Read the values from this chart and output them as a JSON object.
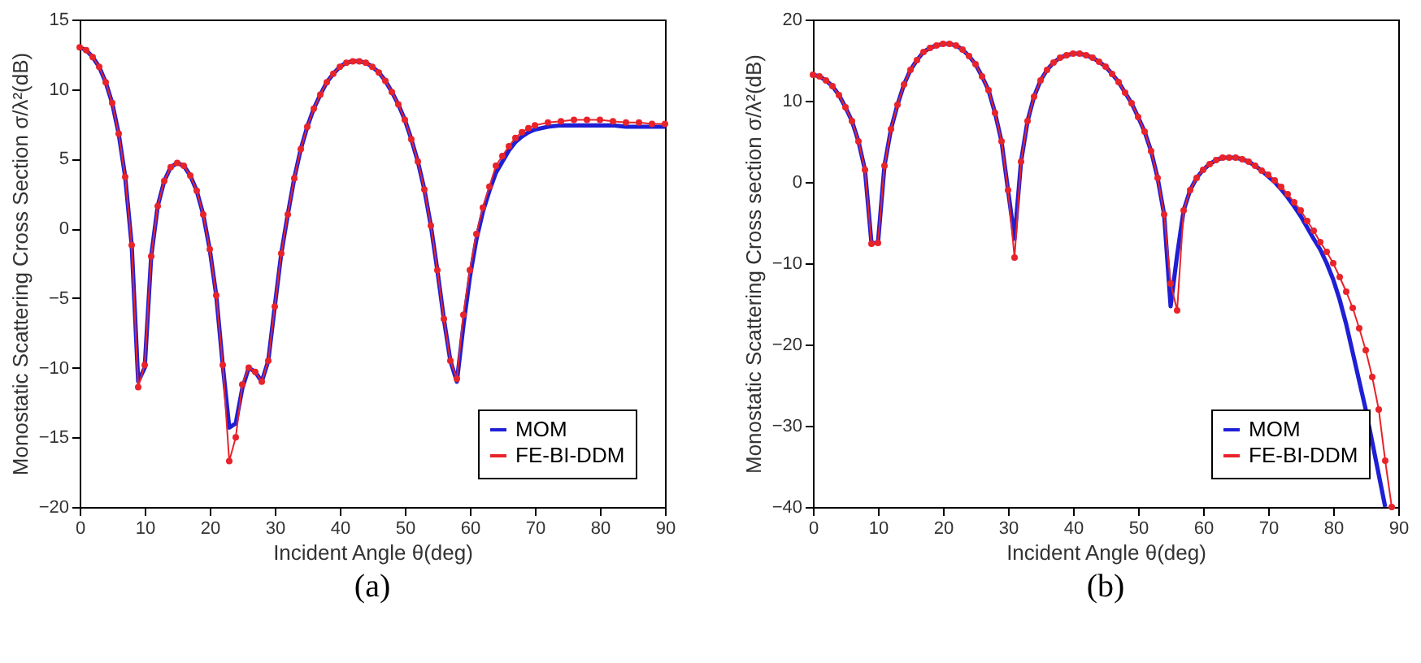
{
  "chart_data": [
    {
      "type": "line",
      "title": "(a)",
      "xlabel": "Incident Angle θ(deg)",
      "ylabel": "Monostatic Scattering Cross Section σ/λ²(dB)",
      "xlim": [
        0,
        90
      ],
      "xticks": [
        0,
        10,
        20,
        30,
        40,
        50,
        60,
        70,
        80,
        90
      ],
      "ylim": [
        -20,
        15
      ],
      "yticks": [
        -20,
        -15,
        -10,
        -5,
        0,
        5,
        10,
        15
      ],
      "grid": false,
      "legend": "bottom right",
      "series": [
        {
          "name": "MOM",
          "color": "#1f1fd6",
          "marker": "none",
          "x": [
            0,
            1,
            2,
            3,
            4,
            5,
            6,
            7,
            8,
            9,
            10,
            11,
            12,
            13,
            14,
            15,
            16,
            17,
            18,
            19,
            20,
            21,
            22,
            23,
            24,
            25,
            26,
            27,
            28,
            29,
            30,
            31,
            32,
            33,
            34,
            35,
            36,
            37,
            38,
            39,
            40,
            41,
            42,
            43,
            44,
            45,
            46,
            47,
            48,
            49,
            50,
            51,
            52,
            53,
            54,
            55,
            56,
            57,
            58,
            59,
            60,
            61,
            62,
            63,
            64,
            65,
            66,
            67,
            68,
            69,
            70,
            72,
            74,
            76,
            78,
            80,
            82,
            84,
            86,
            88,
            90
          ],
          "values": [
            13,
            12.8,
            12.3,
            11.6,
            10.5,
            9,
            6.8,
            3.7,
            -1.2,
            -11,
            -10,
            -2,
            1.6,
            3.4,
            4.4,
            4.7,
            4.5,
            3.8,
            2.7,
            1,
            -1.5,
            -4.8,
            -9.8,
            -14.3,
            -14,
            -11.5,
            -10,
            -10.3,
            -11,
            -9.5,
            -5.6,
            -1.8,
            1,
            3.6,
            5.7,
            7.3,
            8.6,
            9.6,
            10.5,
            11.1,
            11.6,
            11.9,
            12,
            12,
            11.9,
            11.6,
            11.2,
            10.6,
            9.8,
            8.9,
            7.8,
            6.4,
            4.8,
            2.8,
            0.2,
            -3,
            -6.5,
            -9.5,
            -11,
            -7,
            -3.5,
            -0.8,
            1.2,
            2.7,
            4,
            4.8,
            5.6,
            6.2,
            6.6,
            6.9,
            7.1,
            7.3,
            7.4,
            7.4,
            7.4,
            7.4,
            7.4,
            7.3,
            7.3,
            7.3,
            7.3
          ]
        },
        {
          "name": "FE-BI-DDM",
          "color": "#e8232a",
          "marker": "circle",
          "x": [
            0,
            1,
            2,
            3,
            4,
            5,
            6,
            7,
            8,
            9,
            10,
            11,
            12,
            13,
            14,
            15,
            16,
            17,
            18,
            19,
            20,
            21,
            22,
            23,
            24,
            25,
            26,
            27,
            28,
            29,
            30,
            31,
            32,
            33,
            34,
            35,
            36,
            37,
            38,
            39,
            40,
            41,
            42,
            43,
            44,
            45,
            46,
            47,
            48,
            49,
            50,
            51,
            52,
            53,
            54,
            55,
            56,
            57,
            58,
            59,
            60,
            61,
            62,
            63,
            64,
            65,
            66,
            67,
            68,
            69,
            70,
            72,
            74,
            76,
            78,
            80,
            82,
            84,
            86,
            88,
            90
          ],
          "values": [
            13,
            12.8,
            12.3,
            11.6,
            10.5,
            9,
            6.8,
            3.7,
            -1.2,
            -11.4,
            -9.8,
            -2,
            1.6,
            3.4,
            4.4,
            4.7,
            4.5,
            3.8,
            2.7,
            1,
            -1.5,
            -4.8,
            -9.8,
            -16.7,
            -15,
            -11.2,
            -10,
            -10.3,
            -11,
            -9.5,
            -5.6,
            -1.8,
            1,
            3.6,
            5.7,
            7.3,
            8.6,
            9.6,
            10.5,
            11.1,
            11.6,
            11.9,
            12,
            12,
            11.9,
            11.6,
            11.2,
            10.6,
            9.8,
            8.9,
            7.8,
            6.4,
            4.8,
            2.8,
            0.2,
            -3,
            -6.5,
            -9.5,
            -10.8,
            -6.2,
            -3,
            -0.4,
            1.5,
            3,
            4.5,
            5.2,
            5.9,
            6.5,
            6.9,
            7.2,
            7.4,
            7.6,
            7.7,
            7.8,
            7.8,
            7.8,
            7.7,
            7.6,
            7.6,
            7.5,
            7.5
          ]
        }
      ]
    },
    {
      "type": "line",
      "title": "(b)",
      "xlabel": "Incident Angle θ(deg)",
      "ylabel": "Monostatic Scattering Cross section σ/λ²(dB)",
      "xlim": [
        0,
        90
      ],
      "xticks": [
        0,
        10,
        20,
        30,
        40,
        50,
        60,
        70,
        80,
        90
      ],
      "ylim": [
        -40,
        20
      ],
      "yticks": [
        -40,
        -30,
        -20,
        -10,
        0,
        10,
        20
      ],
      "grid": false,
      "legend": "bottom right",
      "series": [
        {
          "name": "MOM",
          "color": "#1f1fd6",
          "marker": "none",
          "x": [
            0,
            1,
            2,
            3,
            4,
            5,
            6,
            7,
            8,
            9,
            10,
            11,
            12,
            13,
            14,
            15,
            16,
            17,
            18,
            19,
            20,
            21,
            22,
            23,
            24,
            25,
            26,
            27,
            28,
            29,
            30,
            31,
            32,
            33,
            34,
            35,
            36,
            37,
            38,
            39,
            40,
            41,
            42,
            43,
            44,
            45,
            46,
            47,
            48,
            49,
            50,
            51,
            52,
            53,
            54,
            55,
            56,
            57,
            58,
            59,
            60,
            61,
            62,
            63,
            64,
            65,
            66,
            67,
            68,
            69,
            70,
            71,
            72,
            73,
            74,
            75,
            76,
            77,
            78,
            79,
            80,
            81,
            82,
            83,
            84,
            85,
            86,
            87,
            88
          ],
          "values": [
            13.2,
            13,
            12.5,
            11.8,
            10.7,
            9.2,
            7.5,
            5,
            1.5,
            -7.5,
            -7.5,
            2,
            6.5,
            9.5,
            12,
            13.8,
            15,
            16,
            16.5,
            16.8,
            17,
            17,
            16.8,
            16.3,
            15.5,
            14.5,
            13,
            11.3,
            8.5,
            5,
            -1,
            -7,
            2.5,
            7.5,
            10.5,
            12.5,
            13.8,
            14.7,
            15.3,
            15.6,
            15.8,
            15.8,
            15.6,
            15.3,
            14.8,
            14.2,
            13.3,
            12.3,
            11,
            9.7,
            8,
            6.2,
            3.8,
            0.5,
            -4,
            -15.3,
            -9,
            -3.5,
            -1,
            0.5,
            1.5,
            2.2,
            2.7,
            3,
            3,
            3,
            2.8,
            2.5,
            2,
            1.4,
            0.7,
            0,
            -0.9,
            -1.9,
            -3,
            -4.2,
            -5.6,
            -7,
            -8.3,
            -10,
            -12,
            -14.5,
            -17.5,
            -21,
            -24.5,
            -28,
            -32,
            -36,
            -40
          ]
        },
        {
          "name": "FE-BI-DDM",
          "color": "#e8232a",
          "marker": "circle",
          "x": [
            0,
            1,
            2,
            3,
            4,
            5,
            6,
            7,
            8,
            9,
            10,
            11,
            12,
            13,
            14,
            15,
            16,
            17,
            18,
            19,
            20,
            21,
            22,
            23,
            24,
            25,
            26,
            27,
            28,
            29,
            30,
            31,
            32,
            33,
            34,
            35,
            36,
            37,
            38,
            39,
            40,
            41,
            42,
            43,
            44,
            45,
            46,
            47,
            48,
            49,
            50,
            51,
            52,
            53,
            54,
            55,
            56,
            57,
            58,
            59,
            60,
            61,
            62,
            63,
            64,
            65,
            66,
            67,
            68,
            69,
            70,
            71,
            72,
            73,
            74,
            75,
            76,
            77,
            78,
            79,
            80,
            81,
            82,
            83,
            84,
            85,
            86,
            87,
            88,
            89
          ],
          "values": [
            13.2,
            13,
            12.5,
            11.8,
            10.7,
            9.2,
            7.5,
            5,
            1.5,
            -7.6,
            -7.5,
            2,
            6.5,
            9.5,
            12,
            13.8,
            15,
            16,
            16.5,
            16.8,
            17,
            17,
            16.8,
            16.3,
            15.5,
            14.5,
            13,
            11.3,
            8.5,
            5,
            -1,
            -9.3,
            2.5,
            7.5,
            10.5,
            12.5,
            13.8,
            14.7,
            15.3,
            15.6,
            15.8,
            15.8,
            15.6,
            15.3,
            14.8,
            14.2,
            13.3,
            12.3,
            11,
            9.7,
            8,
            6.2,
            3.8,
            0.5,
            -4,
            -12.5,
            -15.8,
            -3.5,
            -1,
            0.5,
            1.5,
            2.2,
            2.7,
            3,
            3,
            3,
            2.8,
            2.5,
            2,
            1.4,
            0.9,
            0.2,
            -0.6,
            -1.5,
            -2.5,
            -3.5,
            -4.8,
            -6,
            -7.4,
            -8.6,
            -10,
            -11.7,
            -13.5,
            -15.5,
            -18,
            -20.7,
            -24,
            -28,
            -34.3,
            -40
          ]
        }
      ]
    }
  ]
}
